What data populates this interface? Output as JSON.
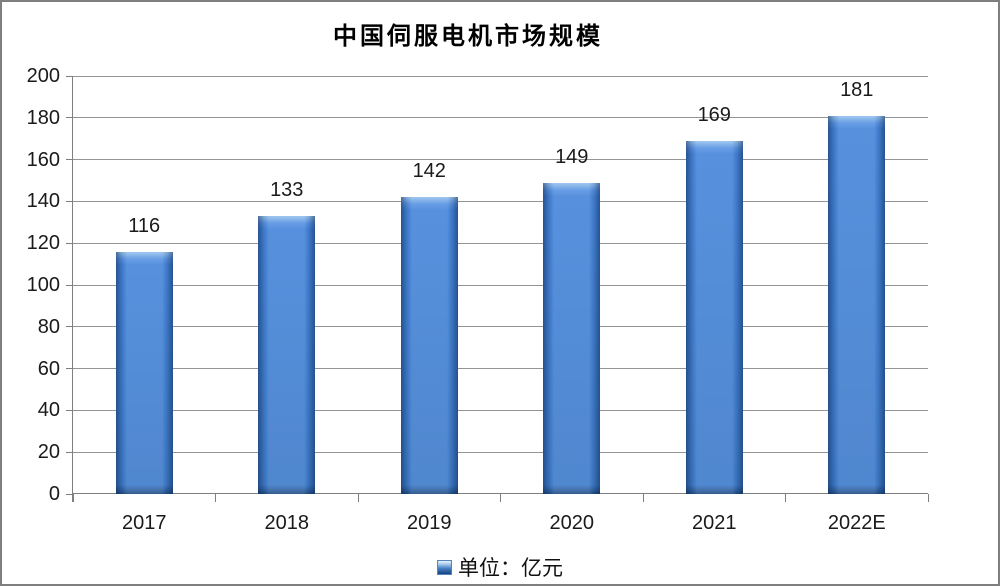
{
  "chart_data": {
    "type": "bar",
    "title": "中国伺服电机市场规模",
    "categories": [
      "2017",
      "2018",
      "2019",
      "2020",
      "2021",
      "2022E"
    ],
    "values": [
      116,
      133,
      142,
      149,
      169,
      181
    ],
    "series_name": "单位：亿元",
    "xlabel": "",
    "ylabel": "",
    "ylim": [
      0,
      200
    ],
    "yticks": [
      0,
      20,
      40,
      60,
      80,
      100,
      120,
      140,
      160,
      180,
      200
    ],
    "grid": true,
    "data_labels": true,
    "legend_position": "bottom",
    "bar_color": "#3F7ED2",
    "gridline_color": "#949494",
    "axis_color": "#7f7f7f",
    "text_color": "#1a1a1a"
  }
}
